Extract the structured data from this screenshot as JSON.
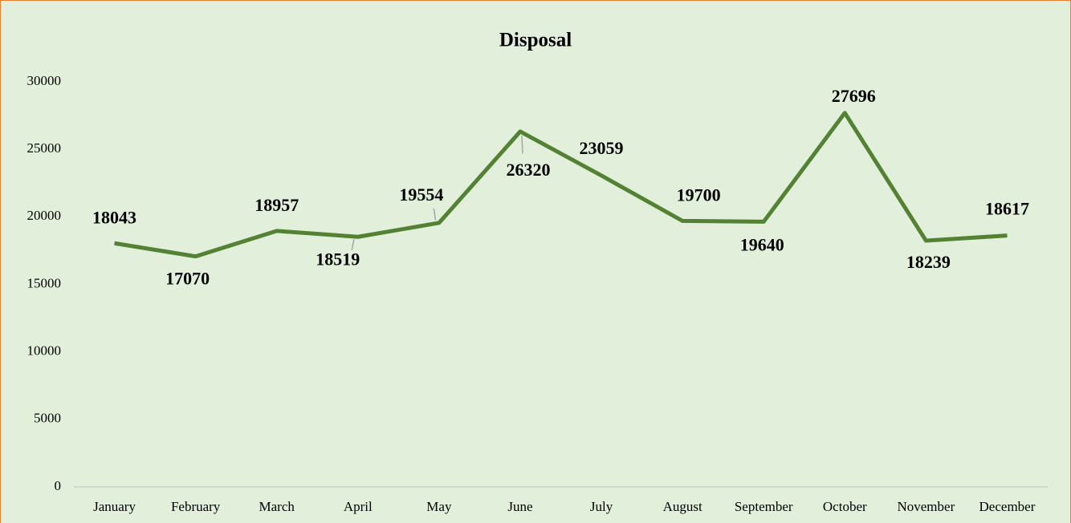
{
  "chart_data": {
    "type": "line",
    "title": "Disposal",
    "categories": [
      "January",
      "February",
      "March",
      "April",
      "May",
      "June",
      "July",
      "August",
      "September",
      "October",
      "November",
      "December"
    ],
    "values": [
      18043,
      17070,
      18957,
      18519,
      19554,
      26320,
      23059,
      19700,
      19640,
      27696,
      18239,
      18617
    ],
    "color": "#548235",
    "ylim": [
      0,
      30000
    ],
    "yticks": [
      0,
      5000,
      10000,
      15000,
      20000,
      25000,
      30000
    ],
    "grid": false
  }
}
